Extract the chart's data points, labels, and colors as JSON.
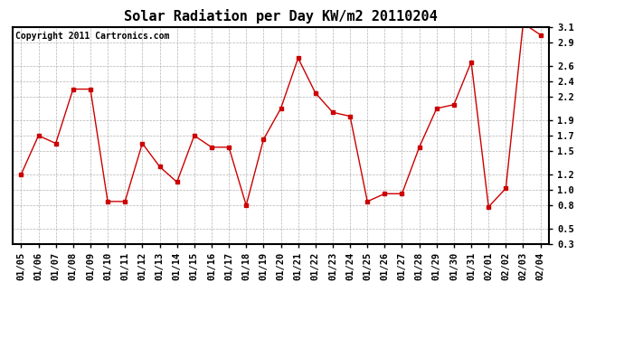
{
  "title": "Solar Radiation per Day KW/m2 20110204",
  "copyright": "Copyright 2011 Cartronics.com",
  "dates": [
    "01/05",
    "01/06",
    "01/07",
    "01/08",
    "01/09",
    "01/10",
    "01/11",
    "01/12",
    "01/13",
    "01/14",
    "01/15",
    "01/16",
    "01/17",
    "01/18",
    "01/19",
    "01/20",
    "01/21",
    "01/22",
    "01/23",
    "01/24",
    "01/25",
    "01/26",
    "01/27",
    "01/28",
    "01/29",
    "01/30",
    "01/31",
    "02/01",
    "02/02",
    "02/03",
    "02/04"
  ],
  "values": [
    1.2,
    1.7,
    1.6,
    2.3,
    2.3,
    0.85,
    0.85,
    1.6,
    1.3,
    1.1,
    1.7,
    1.55,
    1.55,
    0.8,
    1.65,
    2.05,
    2.7,
    2.25,
    2.0,
    1.95,
    0.85,
    0.95,
    0.95,
    1.55,
    2.05,
    2.1,
    2.65,
    0.78,
    1.02,
    3.15,
    3.0
  ],
  "line_color": "#cc0000",
  "marker": "s",
  "marker_size": 3,
  "ylim": [
    0.3,
    3.1
  ],
  "yticks": [
    0.3,
    0.5,
    0.8,
    1.0,
    1.2,
    1.5,
    1.7,
    1.9,
    2.2,
    2.4,
    2.6,
    2.9,
    3.1
  ],
  "background_color": "#ffffff",
  "grid_color": "#aaaaaa",
  "title_fontsize": 11,
  "tick_fontsize": 7.5,
  "copyright_fontsize": 7
}
